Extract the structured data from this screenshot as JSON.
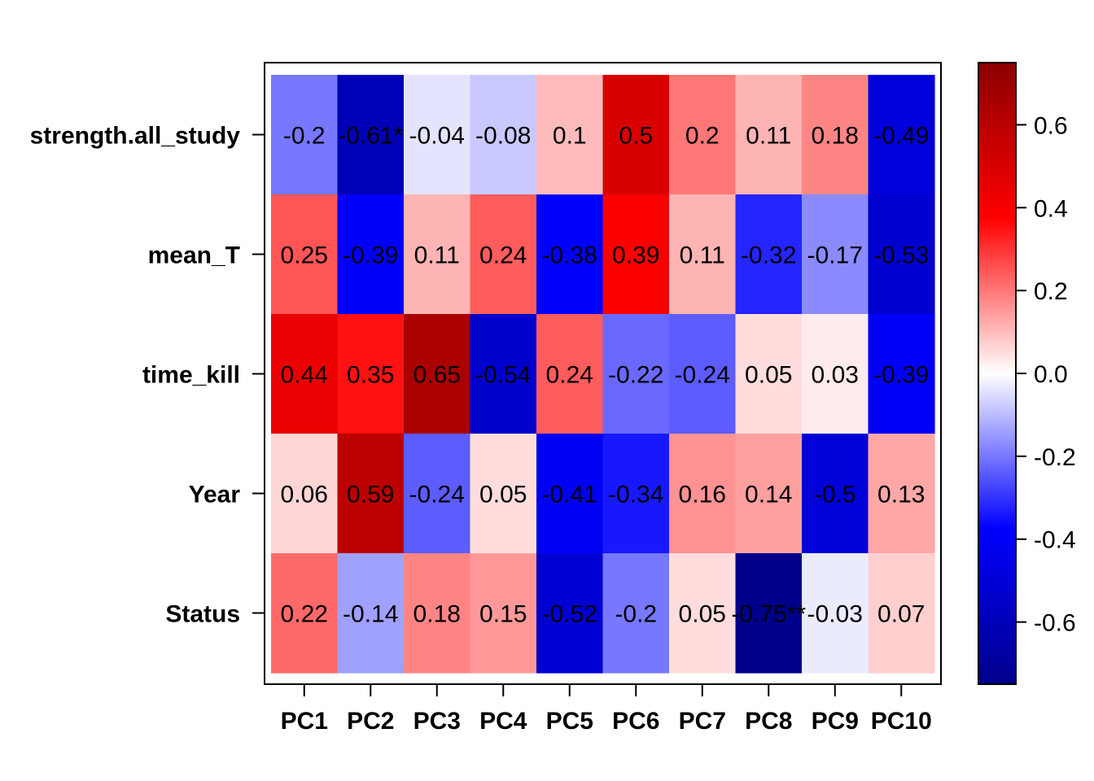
{
  "chart_data": {
    "type": "heatmap",
    "title": "",
    "xlabel": "",
    "ylabel": "",
    "rows": [
      "strength.all_study",
      "mean_T",
      "time_kill",
      "Year",
      "Status"
    ],
    "columns": [
      "PC1",
      "PC2",
      "PC3",
      "PC4",
      "PC5",
      "PC6",
      "PC7",
      "PC8",
      "PC9",
      "PC10"
    ],
    "values": [
      [
        -0.2,
        -0.61,
        -0.04,
        -0.08,
        0.1,
        0.5,
        0.2,
        0.11,
        0.18,
        -0.49
      ],
      [
        0.25,
        -0.39,
        0.11,
        0.24,
        -0.38,
        0.39,
        0.11,
        -0.32,
        -0.17,
        -0.53
      ],
      [
        0.44,
        0.35,
        0.65,
        -0.54,
        0.24,
        -0.22,
        -0.24,
        0.05,
        0.03,
        -0.39
      ],
      [
        0.06,
        0.59,
        -0.24,
        0.05,
        -0.41,
        -0.34,
        0.16,
        0.14,
        -0.5,
        0.13
      ],
      [
        0.22,
        -0.14,
        0.18,
        0.15,
        -0.52,
        -0.2,
        0.05,
        -0.75,
        -0.03,
        0.07
      ]
    ],
    "cell_labels": [
      [
        "-0.2",
        "-0.61*",
        "-0.04",
        "-0.08",
        "0.1",
        "0.5",
        "0.2",
        "0.11",
        "0.18",
        "-0.49"
      ],
      [
        "0.25",
        "-0.39",
        "0.11",
        "0.24",
        "-0.38",
        "0.39",
        "0.11",
        "-0.32",
        "-0.17",
        "-0.53"
      ],
      [
        "0.44",
        "0.35",
        "0.65",
        "-0.54",
        "0.24",
        "-0.22",
        "-0.24",
        "0.05",
        "0.03",
        "-0.39"
      ],
      [
        "0.06",
        "0.59",
        "-0.24",
        "0.05",
        "-0.41",
        "-0.34",
        "0.16",
        "0.14",
        "-0.5",
        "0.13"
      ],
      [
        "0.22",
        "-0.14",
        "0.18",
        "0.15",
        "-0.52",
        "-0.2",
        "0.05",
        "-0.75**",
        "-0.03",
        "0.07"
      ]
    ],
    "color_scale": {
      "range": [
        -0.75,
        0.75
      ],
      "stops": [
        "#00008b",
        "#0000ff",
        "#ffffff",
        "#ff0000",
        "#8b0000"
      ],
      "ticks": [
        -0.6,
        -0.4,
        -0.2,
        0.0,
        0.2,
        0.4,
        0.6
      ],
      "tick_labels": [
        "-0.6",
        "-0.4",
        "-0.2",
        "0.0",
        "0.2",
        "0.4",
        "0.6"
      ]
    },
    "legend": "right"
  }
}
